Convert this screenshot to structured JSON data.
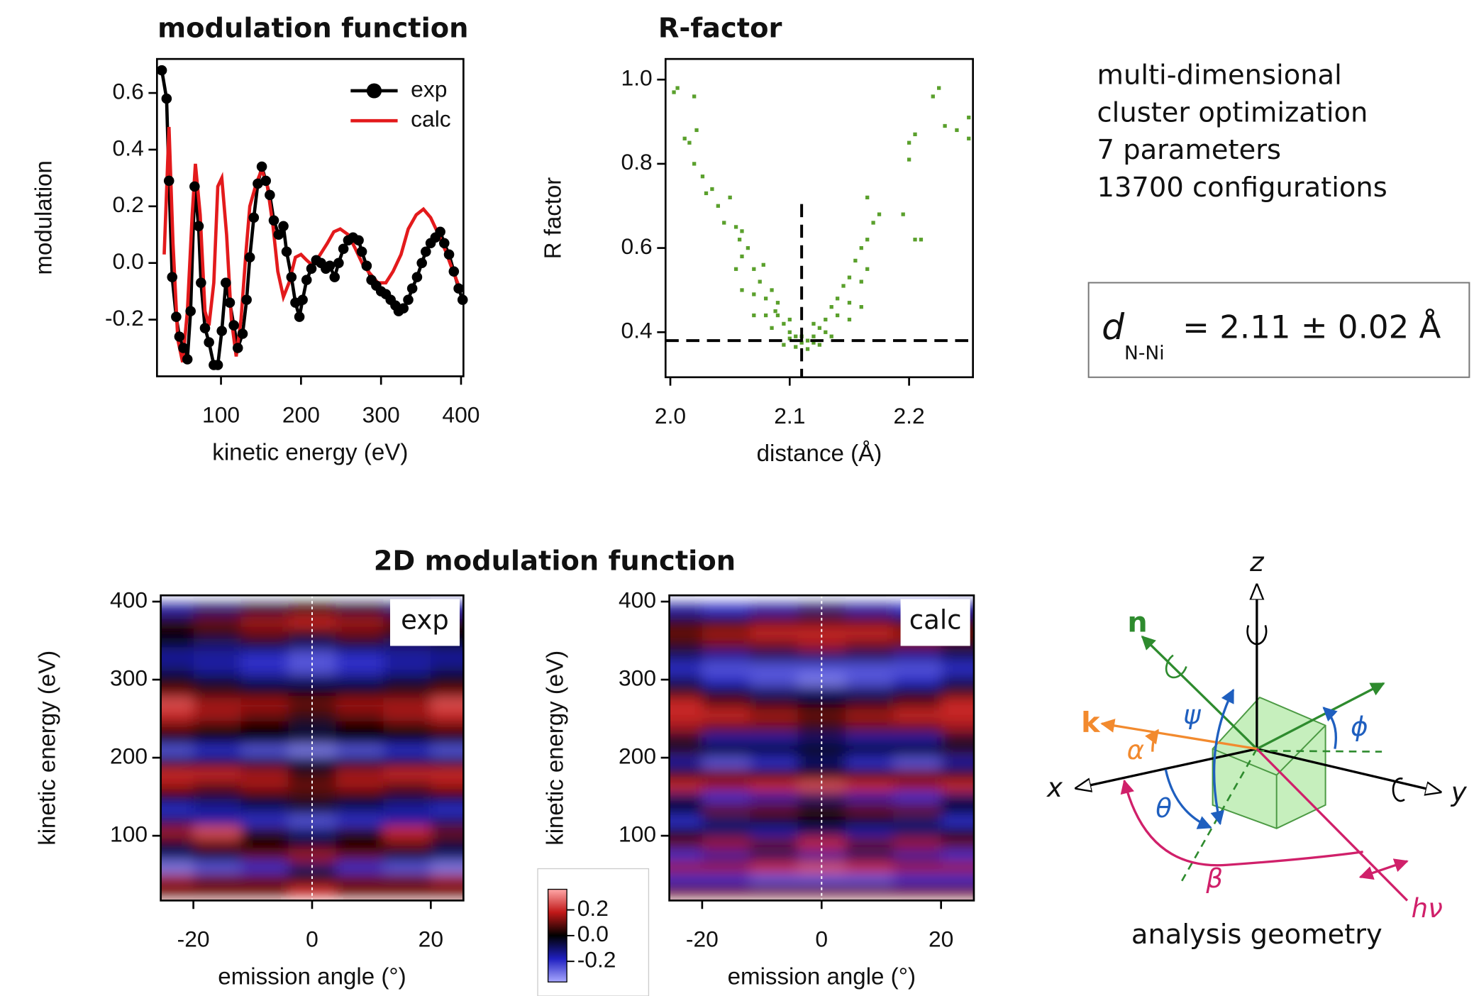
{
  "chart_data": [
    {
      "type": "line",
      "title": "modulation function",
      "xlabel": "kinetic energy (eV)",
      "ylabel": "modulation",
      "xlim": [
        20,
        403
      ],
      "xticks": [
        100,
        200,
        300,
        400
      ],
      "ylim": [
        -0.4,
        0.72
      ],
      "yticks": [
        -0.2,
        {
          "value": 0,
          "label": "0.0"
        },
        0.2,
        0.4,
        0.6
      ],
      "legend": "upper right",
      "series": [
        {
          "name": "exp",
          "color": "#000000",
          "marker": true,
          "x": [
            26,
            32,
            35,
            39,
            44,
            48,
            53,
            58,
            62,
            67,
            72,
            75,
            80,
            85,
            91,
            96,
            101,
            106,
            111,
            116,
            121,
            127,
            132,
            136,
            141,
            146,
            151,
            156,
            161,
            166,
            172,
            178,
            182,
            188,
            193,
            198,
            202,
            207,
            213,
            219,
            225,
            231,
            236,
            242,
            247,
            253,
            259,
            265,
            272,
            276,
            282,
            288,
            294,
            300,
            306,
            312,
            318,
            322,
            328,
            334,
            339,
            345,
            351,
            356,
            362,
            368,
            374,
            379,
            385,
            391,
            397,
            402
          ],
          "values": [
            0.68,
            0.58,
            0.29,
            -0.05,
            -0.19,
            -0.26,
            -0.3,
            -0.34,
            -0.17,
            0.27,
            0.13,
            -0.07,
            -0.23,
            -0.28,
            -0.36,
            -0.36,
            -0.24,
            -0.07,
            -0.14,
            -0.22,
            -0.3,
            -0.25,
            -0.13,
            0.02,
            0.16,
            0.28,
            0.34,
            0.29,
            0.24,
            0.15,
            0.1,
            0.13,
            0.04,
            -0.05,
            -0.14,
            -0.19,
            -0.13,
            -0.06,
            -0.02,
            0.01,
            0.0,
            -0.02,
            -0.01,
            -0.05,
            0.0,
            0.05,
            0.08,
            0.09,
            0.08,
            0.04,
            -0.01,
            -0.06,
            -0.08,
            -0.1,
            -0.11,
            -0.13,
            -0.15,
            -0.17,
            -0.16,
            -0.13,
            -0.09,
            -0.05,
            0.0,
            0.04,
            0.07,
            0.09,
            0.11,
            0.07,
            0.03,
            -0.03,
            -0.09,
            -0.13
          ]
        },
        {
          "name": "calc",
          "color": "#e31a1c",
          "marker": false,
          "x": [
            29,
            35,
            40,
            46,
            52,
            58,
            64,
            68,
            74,
            80,
            85,
            91,
            96,
            101,
            107,
            113,
            119,
            125,
            131,
            136,
            144,
            151,
            158,
            165,
            171,
            178,
            185,
            193,
            200,
            207,
            215,
            224,
            233,
            241,
            249,
            259,
            268,
            278,
            287,
            296,
            306,
            315,
            325,
            334,
            344,
            353,
            362,
            372,
            381,
            390,
            400
          ],
          "values": [
            0.03,
            0.48,
            0.07,
            -0.27,
            -0.35,
            -0.17,
            0.17,
            0.35,
            0.17,
            -0.17,
            -0.22,
            -0.07,
            0.27,
            0.3,
            0.1,
            -0.2,
            -0.33,
            -0.2,
            0.03,
            0.2,
            0.28,
            0.33,
            0.27,
            0.13,
            -0.03,
            -0.12,
            -0.07,
            0.02,
            0.03,
            0.01,
            -0.01,
            0.03,
            0.07,
            0.11,
            0.12,
            0.1,
            0.05,
            -0.01,
            -0.04,
            -0.07,
            -0.07,
            -0.03,
            0.03,
            0.12,
            0.17,
            0.19,
            0.16,
            0.1,
            0.04,
            -0.03,
            -0.1
          ]
        }
      ]
    },
    {
      "type": "scatter",
      "title": "R-factor",
      "xlabel": "distance (Å)",
      "ylabel": "R factor",
      "color": "#5aa02c",
      "xlim": [
        1.996,
        2.2535
      ],
      "xticks": [
        {
          "value": 2,
          "label": "2.0"
        },
        2.1,
        2.2
      ],
      "ylim": [
        0.293,
        1.049
      ],
      "yticks": [
        0.4,
        0.6,
        0.8,
        {
          "value": 1,
          "label": "1.0"
        }
      ],
      "reference_lines": {
        "x": 2.11,
        "y": 0.38
      },
      "x": [
        2.003,
        2.006,
        2.02,
        2.012,
        2.016,
        2.022,
        2.02,
        2.027,
        2.03,
        2.035,
        2.04,
        2.045,
        2.05,
        2.055,
        2.058,
        2.06,
        2.065,
        2.07,
        2.075,
        2.078,
        2.08,
        2.085,
        2.088,
        2.09,
        2.095,
        2.1,
        2.105,
        2.11,
        2.115,
        2.12,
        2.125,
        2.13,
        2.135,
        2.14,
        2.145,
        2.15,
        2.155,
        2.16,
        2.165,
        2.17,
        2.175,
        2.165,
        2.195,
        2.205,
        2.2,
        2.205,
        2.2,
        2.225,
        2.22,
        2.23,
        2.24,
        2.25,
        2.25,
        2.21,
        2.06,
        2.07,
        2.08,
        2.09,
        2.1,
        2.12,
        2.13,
        2.14,
        2.15,
        2.16,
        2.095,
        2.105,
        2.115,
        2.125,
        2.1,
        2.12,
        2.11,
        2.085,
        2.135,
        2.07,
        2.15,
        2.06,
        2.16,
        2.055,
        2.165
      ],
      "values": [
        0.97,
        0.98,
        0.96,
        0.86,
        0.85,
        0.88,
        0.8,
        0.77,
        0.73,
        0.74,
        0.7,
        0.66,
        0.72,
        0.65,
        0.62,
        0.58,
        0.6,
        0.55,
        0.52,
        0.56,
        0.48,
        0.5,
        0.45,
        0.44,
        0.42,
        0.4,
        0.39,
        0.375,
        0.38,
        0.39,
        0.41,
        0.43,
        0.46,
        0.48,
        0.51,
        0.53,
        0.57,
        0.6,
        0.62,
        0.66,
        0.68,
        0.72,
        0.68,
        0.62,
        0.85,
        0.87,
        0.81,
        0.98,
        0.96,
        0.89,
        0.88,
        0.91,
        0.86,
        0.62,
        0.64,
        0.49,
        0.44,
        0.47,
        0.43,
        0.42,
        0.4,
        0.44,
        0.47,
        0.52,
        0.37,
        0.365,
        0.36,
        0.37,
        0.385,
        0.375,
        0.39,
        0.41,
        0.39,
        0.44,
        0.43,
        0.5,
        0.46,
        0.55,
        0.55
      ]
    },
    {
      "type": "heatmap",
      "label": "exp",
      "xlabel": "emission angle (°)",
      "ylabel": "kinetic energy (eV)",
      "xlim": [
        -25.5,
        25.5
      ],
      "xticks": [
        -20,
        0,
        20
      ],
      "ylim": [
        17,
        408
      ],
      "yticks": [
        100,
        200,
        300,
        400
      ],
      "reference_line_x": 0,
      "x": [
        -24,
        -16,
        -8,
        0,
        8,
        16,
        24
      ],
      "y": [
        30,
        45,
        60,
        75,
        90,
        105,
        120,
        135,
        150,
        165,
        180,
        195,
        210,
        225,
        240,
        255,
        270,
        285,
        300,
        315,
        330,
        345,
        360,
        375,
        390
      ],
      "z": [
        [
          0.1,
          0.1,
          0.1,
          0.2,
          0.1,
          0.1,
          0.1
        ],
        [
          0.15,
          0.1,
          0.1,
          0.05,
          0.1,
          0.1,
          0.15
        ],
        [
          -0.3,
          -0.25,
          -0.2,
          -0.1,
          -0.2,
          -0.25,
          -0.3
        ],
        [
          -0.1,
          -0.05,
          0.1,
          0.15,
          0.1,
          -0.05,
          -0.1
        ],
        [
          -0.05,
          0.1,
          0.0,
          -0.05,
          0.0,
          0.1,
          -0.05
        ],
        [
          0.15,
          0.25,
          0.05,
          -0.1,
          0.05,
          0.2,
          0.1
        ],
        [
          -0.1,
          -0.15,
          -0.2,
          -0.25,
          -0.2,
          -0.15,
          -0.1
        ],
        [
          -0.2,
          -0.15,
          -0.1,
          -0.05,
          -0.1,
          -0.15,
          -0.2
        ],
        [
          0.0,
          -0.05,
          0.0,
          0.05,
          0.0,
          -0.05,
          0.0
        ],
        [
          0.15,
          0.1,
          0.15,
          0.1,
          0.15,
          0.1,
          0.15
        ],
        [
          0.2,
          0.2,
          0.15,
          0.05,
          0.15,
          0.2,
          0.2
        ],
        [
          -0.05,
          -0.05,
          -0.05,
          -0.05,
          -0.05,
          -0.05,
          -0.05
        ],
        [
          -0.25,
          -0.2,
          -0.25,
          -0.3,
          -0.25,
          -0.2,
          -0.25
        ],
        [
          0.0,
          0.0,
          0.0,
          -0.05,
          0.0,
          0.0,
          0.0
        ],
        [
          0.1,
          0.05,
          0.0,
          -0.05,
          0.0,
          0.05,
          0.1
        ],
        [
          0.2,
          0.15,
          0.1,
          0.05,
          0.1,
          0.15,
          0.2
        ],
        [
          0.25,
          0.15,
          0.15,
          0.1,
          0.15,
          0.15,
          0.25
        ],
        [
          0.1,
          0.05,
          0.0,
          0.0,
          0.0,
          0.05,
          0.1
        ],
        [
          0.0,
          -0.05,
          -0.1,
          -0.1,
          -0.1,
          -0.05,
          0.0
        ],
        [
          -0.1,
          -0.15,
          -0.2,
          -0.25,
          -0.2,
          -0.15,
          -0.1
        ],
        [
          -0.15,
          -0.15,
          -0.2,
          -0.25,
          -0.2,
          -0.15,
          -0.15
        ],
        [
          -0.05,
          -0.1,
          -0.05,
          -0.1,
          -0.05,
          -0.1,
          -0.05
        ],
        [
          0.0,
          0.05,
          0.1,
          0.05,
          0.1,
          0.05,
          0.0
        ],
        [
          0.05,
          0.1,
          0.15,
          0.2,
          0.15,
          0.1,
          0.05
        ],
        [
          -0.15,
          -0.1,
          -0.05,
          0.0,
          -0.05,
          -0.1,
          -0.15
        ]
      ]
    },
    {
      "type": "heatmap",
      "label": "calc",
      "xlabel": "emission angle (°)",
      "ylabel": "kinetic energy (eV)",
      "xlim": [
        -25.5,
        25.5
      ],
      "xticks": [
        -20,
        0,
        20
      ],
      "ylim": [
        17,
        408
      ],
      "yticks": [
        100,
        200,
        300,
        400
      ],
      "reference_line_x": 0,
      "x": [
        -24,
        -16,
        -8,
        0,
        8,
        16,
        24
      ],
      "y": [
        30,
        45,
        60,
        75,
        90,
        105,
        120,
        135,
        150,
        165,
        180,
        195,
        210,
        225,
        240,
        255,
        270,
        285,
        300,
        315,
        330,
        345,
        360,
        375,
        390
      ],
      "z": [
        [
          0.1,
          0.1,
          0.1,
          0.1,
          0.1,
          0.1,
          0.1
        ],
        [
          -0.2,
          -0.2,
          -0.25,
          -0.25,
          -0.25,
          -0.2,
          -0.2
        ],
        [
          0.15,
          0.15,
          0.2,
          0.25,
          0.2,
          0.15,
          0.15
        ],
        [
          -0.2,
          -0.15,
          -0.1,
          -0.15,
          -0.1,
          -0.15,
          -0.2
        ],
        [
          0.1,
          0.15,
          0.1,
          0.2,
          0.1,
          0.15,
          0.1
        ],
        [
          -0.05,
          -0.1,
          -0.15,
          -0.1,
          -0.15,
          -0.1,
          -0.05
        ],
        [
          -0.2,
          -0.1,
          -0.05,
          0.0,
          -0.05,
          -0.1,
          -0.2
        ],
        [
          0.0,
          0.1,
          0.1,
          0.05,
          0.1,
          0.1,
          0.0
        ],
        [
          -0.1,
          -0.2,
          -0.15,
          -0.1,
          -0.15,
          -0.2,
          -0.1
        ],
        [
          0.2,
          0.15,
          0.2,
          0.25,
          0.2,
          0.15,
          0.2
        ],
        [
          0.05,
          0.1,
          0.05,
          0.0,
          0.05,
          0.1,
          0.05
        ],
        [
          -0.15,
          -0.25,
          -0.2,
          -0.1,
          -0.2,
          -0.25,
          -0.15
        ],
        [
          0.05,
          0.0,
          0.0,
          0.0,
          0.0,
          0.0,
          0.05
        ],
        [
          -0.05,
          -0.15,
          -0.15,
          -0.1,
          -0.15,
          -0.15,
          -0.05
        ],
        [
          0.15,
          0.1,
          0.1,
          0.05,
          0.1,
          0.1,
          0.15
        ],
        [
          0.2,
          0.2,
          0.15,
          0.1,
          0.15,
          0.2,
          0.2
        ],
        [
          0.2,
          0.1,
          0.05,
          0.0,
          0.05,
          0.1,
          0.2
        ],
        [
          0.05,
          -0.05,
          -0.1,
          -0.1,
          -0.1,
          -0.05,
          0.05
        ],
        [
          -0.1,
          -0.2,
          -0.25,
          -0.3,
          -0.25,
          -0.2,
          -0.1
        ],
        [
          -0.2,
          -0.25,
          -0.25,
          -0.25,
          -0.25,
          -0.25,
          -0.2
        ],
        [
          -0.1,
          -0.15,
          -0.1,
          -0.1,
          -0.1,
          -0.15,
          -0.1
        ],
        [
          0.05,
          0.1,
          0.1,
          0.15,
          0.1,
          0.1,
          0.05
        ],
        [
          0.1,
          0.15,
          0.2,
          0.2,
          0.2,
          0.15,
          0.1
        ],
        [
          0.05,
          0.05,
          0.1,
          0.1,
          0.1,
          0.05,
          0.05
        ],
        [
          -0.15,
          -0.2,
          -0.15,
          -0.1,
          -0.15,
          -0.2,
          -0.15
        ]
      ]
    }
  ],
  "section_title": "2D modulation function",
  "colorbar": {
    "clim": [
      -0.36,
      0.36
    ],
    "ticks": [
      0.2,
      {
        "value": 0,
        "label": "0.0"
      },
      -0.2
    ],
    "colors": [
      "#a8a8ff",
      "#2020c0",
      "#000000",
      "#c01818",
      "#ffa8a8"
    ]
  },
  "info": {
    "lines": [
      "multi-dimensional",
      "cluster optimization",
      "7 parameters",
      "13700 configurations"
    ]
  },
  "result": {
    "symbol": "d",
    "subscript": "N-Ni",
    "text": "= 2.11 ± 0.02 Å"
  },
  "diagram": {
    "caption": "analysis geometry",
    "labels": {
      "z": "z",
      "n": "n",
      "k": "k",
      "x": "x",
      "y": "y",
      "psi": "ψ",
      "phi": "ϕ",
      "alpha": "α",
      "theta": "θ",
      "beta": "β",
      "hv": "hν"
    }
  }
}
